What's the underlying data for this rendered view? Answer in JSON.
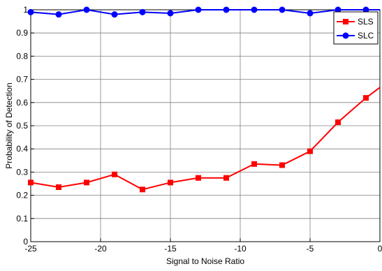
{
  "chart_data": {
    "type": "line",
    "title": "",
    "xlabel": "Signal to Noise Ratio",
    "ylabel": "Probability of Detection",
    "xlim": [
      -25,
      0
    ],
    "ylim": [
      0,
      1
    ],
    "xticks": [
      -25,
      -20,
      -15,
      -10,
      -5,
      0
    ],
    "xtick_labels": [
      "-25",
      "-20",
      "-15",
      "-10",
      "-5",
      "0"
    ],
    "yticks": [
      0,
      0.1,
      0.2,
      0.3,
      0.4,
      0.5,
      0.6,
      0.7,
      0.8,
      0.9,
      1
    ],
    "ytick_labels": [
      "0",
      "0.1",
      "0.2",
      "0.3",
      "0.4",
      "0.5",
      "0.6",
      "0.7",
      "0.8",
      "0.9",
      "1"
    ],
    "grid": true,
    "legend_position": "top-right",
    "x": [
      -25,
      -23,
      -21,
      -19,
      -17,
      -15,
      -13,
      -11,
      -9,
      -7,
      -5,
      -3,
      -1
    ],
    "series": [
      {
        "name": "SLS",
        "color": "#ff0000",
        "marker": "square",
        "values": [
          0.255,
          0.235,
          0.255,
          0.29,
          0.225,
          0.255,
          0.275,
          0.275,
          0.335,
          0.33,
          0.39,
          0.515,
          0.62
        ],
        "end_point": [
          0,
          0.665
        ]
      },
      {
        "name": "SLC",
        "color": "#0000ff",
        "marker": "circle",
        "values": [
          0.99,
          0.98,
          1.0,
          0.98,
          0.99,
          0.985,
          1.0,
          1.0,
          1.0,
          1.0,
          0.985,
          1.0,
          1.0
        ],
        "end_point": [
          0,
          1.0
        ]
      }
    ]
  }
}
